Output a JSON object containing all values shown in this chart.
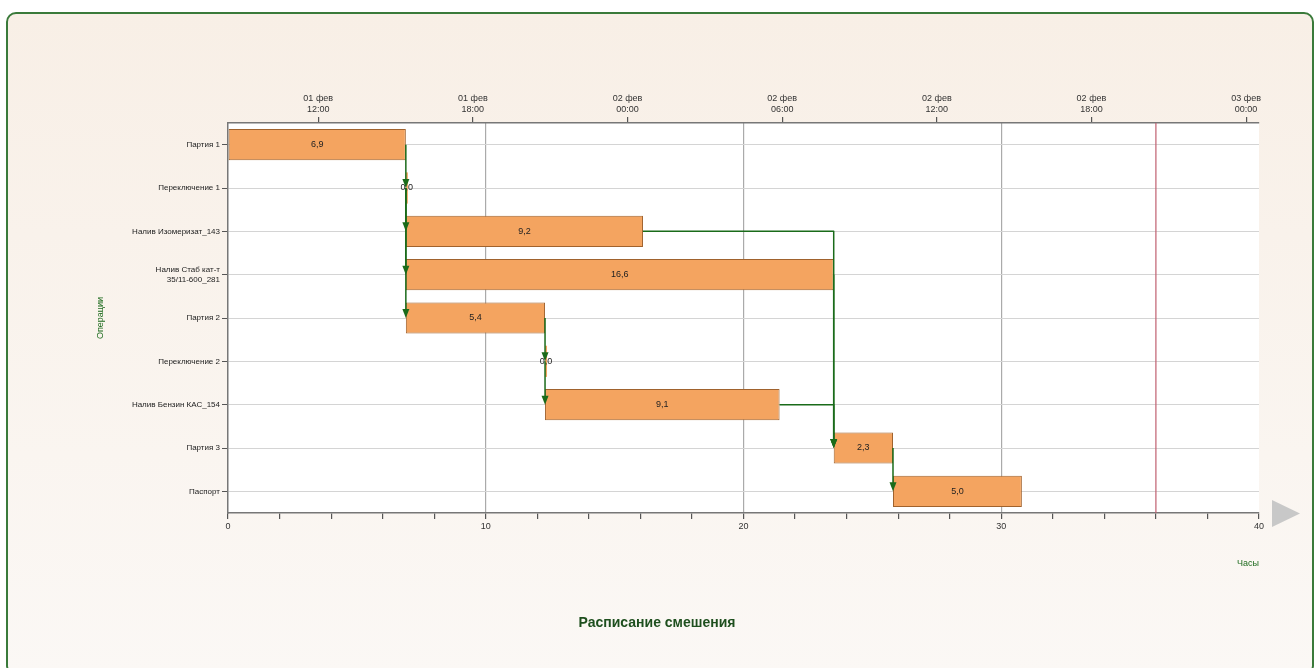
{
  "chart_data": {
    "type": "bar",
    "orientation": "horizontal",
    "title": "Расписание смешения",
    "xlabel": "Часы",
    "ylabel": "Операции",
    "categories": [
      "Партия 1",
      "Переключение 1",
      "Налив Изомеризат_143",
      "Налив Стаб кат-т 35/11-600_281",
      "Партия 2",
      "Переключение 2",
      "Налив Бензин КАС_154",
      "Партия 3",
      "Паспорт"
    ],
    "base": [
      0,
      6.9,
      6.9,
      6.9,
      6.9,
      12.3,
      12.3,
      23.5,
      25.8
    ],
    "values": [
      6.9,
      0.0,
      9.2,
      16.6,
      5.4,
      0.0,
      9.1,
      2.3,
      5.0
    ],
    "value_labels": [
      "6,9",
      "0,0",
      "9,2",
      "16,6",
      "5,4",
      "0,0",
      "9,1",
      "2,3",
      "5,0"
    ],
    "color": "#f4a460",
    "xlim": [
      0,
      40
    ],
    "xticks": [
      0,
      {
        "value": 2,
        "label": null
      },
      {
        "value": 4,
        "label": null
      },
      {
        "value": 6,
        "label": null
      },
      {
        "value": 8,
        "label": null
      },
      10,
      {
        "value": 12,
        "label": null
      },
      {
        "value": 14,
        "label": null
      },
      {
        "value": 16,
        "label": null
      },
      {
        "value": 18,
        "label": null
      },
      20,
      {
        "value": 22,
        "label": null
      },
      {
        "value": 24,
        "label": null
      },
      {
        "value": 26,
        "label": null
      },
      {
        "value": 28,
        "label": null
      },
      30,
      {
        "value": 32,
        "label": null
      },
      {
        "value": 34,
        "label": null
      },
      {
        "value": 36,
        "label": null
      },
      {
        "value": 38,
        "label": null
      },
      40
    ],
    "x2lim": [
      "--02-01T08:30",
      "--02-03T00:30"
    ],
    "x2ticks": [
      {
        "value": "--02-01T12:00",
        "label": "01 фев 12:00"
      },
      {
        "value": "--02-01T18:00",
        "label": "01 фев 18:00"
      },
      {
        "value": "--02-02T00:00",
        "label": "02 фев 00:00"
      },
      {
        "value": "--02-02T06:00",
        "label": "02 фев 06:00"
      },
      {
        "value": "--02-02T12:00",
        "label": "02 фев 12:00"
      },
      {
        "value": "--02-02T18:00",
        "label": "02 фев 18:00"
      },
      {
        "value": "--02-03T00:00",
        "label": "03 фев 00:00"
      }
    ],
    "ref_lines": [
      {
        "axis": "x",
        "value": 36,
        "color": "#c06070"
      }
    ],
    "grid": true,
    "legend": false
  }
}
